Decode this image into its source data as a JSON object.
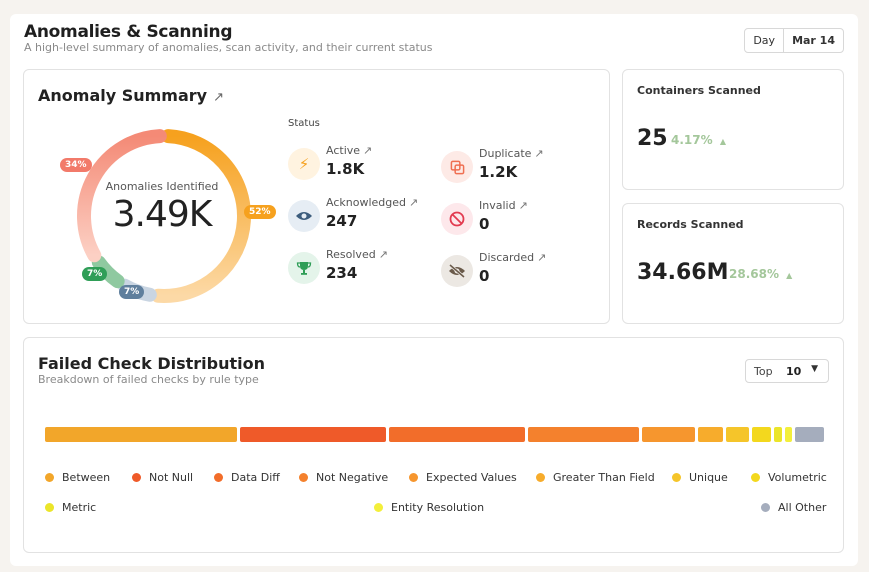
{
  "header": {
    "title": "Anomalies & Scanning",
    "subtitle": "A high-level summary of anomalies, scan activity, and their current status",
    "date_range": {
      "period": "Day",
      "date": "Mar 14"
    }
  },
  "anomaly_summary": {
    "title": "Anomaly Summary",
    "link_icon": "arrow-up-right-icon",
    "donut": {
      "center_label": "Anomalies Identified",
      "center_value": "3.49K",
      "segments": [
        {
          "value": 52,
          "label": "52%",
          "color": "#f6a11e"
        },
        {
          "value": 7,
          "label": "7%",
          "color": "#5f7f9d"
        },
        {
          "value": 7,
          "label": "7%",
          "color": "#2f9e57"
        },
        {
          "value": 34,
          "label": "34%",
          "color": "#f27a6a"
        }
      ]
    },
    "status_heading": "Status",
    "statuses": [
      {
        "label": "Active",
        "value": "1.8K",
        "icon": "lightning-icon",
        "icon_color": "#f6a11e",
        "icon_bg": "#fff3e0"
      },
      {
        "label": "Duplicate",
        "value": "1.2K",
        "icon": "duplicate-icon",
        "icon_color": "#ef6f52",
        "icon_bg": "#fdeae6"
      },
      {
        "label": "Acknowledged",
        "value": "247",
        "icon": "eye-icon",
        "icon_color": "#3d5d7d",
        "icon_bg": "#e6edf4"
      },
      {
        "label": "Invalid",
        "value": "0",
        "icon": "prohibited-icon",
        "icon_color": "#e23b50",
        "icon_bg": "#fde8eb"
      },
      {
        "label": "Resolved",
        "value": "234",
        "icon": "trophy-icon",
        "icon_color": "#2f9e57",
        "icon_bg": "#e4f4ea"
      },
      {
        "label": "Discarded",
        "value": "0",
        "icon": "eye-off-icon",
        "icon_color": "#6a5a4a",
        "icon_bg": "#ece8e3"
      }
    ]
  },
  "containers_scanned": {
    "title": "Containers Scanned",
    "value": "25",
    "change": "4.17%",
    "trend_icon": "triangle-up-icon"
  },
  "records_scanned": {
    "title": "Records Scanned",
    "value": "34.66M",
    "change": "28.68%",
    "trend_icon": "triangle-up-icon"
  },
  "failed_checks": {
    "title": "Failed Check Distribution",
    "subtitle": "Breakdown of failed checks by rule type",
    "top_selector": {
      "label": "Top",
      "value": "10"
    },
    "items": [
      {
        "name": "Between",
        "value": 190,
        "color": "#f2a62a"
      },
      {
        "name": "Not Null",
        "value": 145,
        "color": "#ef5a29"
      },
      {
        "name": "Data Diff",
        "value": 135,
        "color": "#f26d2a"
      },
      {
        "name": "Not Negative",
        "value": 110,
        "color": "#f4812d"
      },
      {
        "name": "Expected Values",
        "value": 53,
        "color": "#f6962e"
      },
      {
        "name": "Greater Than Field",
        "value": 25,
        "color": "#f7ac2c"
      },
      {
        "name": "Unique",
        "value": 23,
        "color": "#f5c52a"
      },
      {
        "name": "Volumetric",
        "value": 18,
        "color": "#f3d81e"
      },
      {
        "name": "Metric",
        "value": 8,
        "color": "#ebe52a"
      },
      {
        "name": "Entity Resolution",
        "value": 7,
        "color": "#f3ef3b"
      },
      {
        "name": "All Other",
        "value": 29,
        "color": "#a5adbd"
      }
    ]
  }
}
